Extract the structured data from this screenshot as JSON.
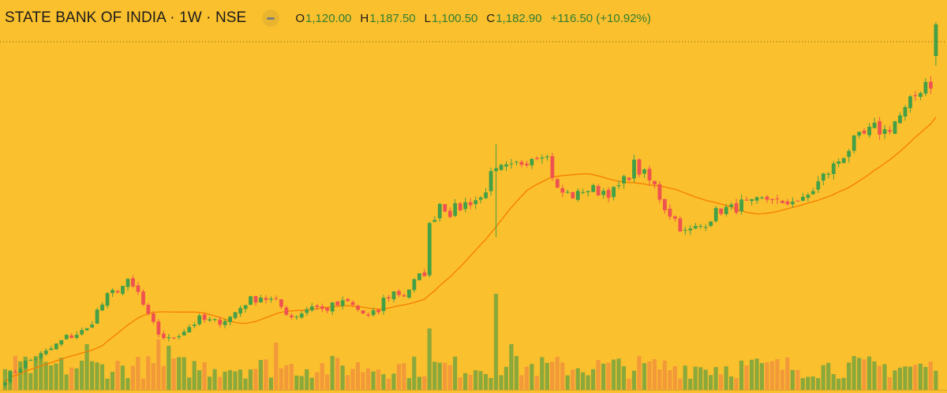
{
  "header": {
    "title": "STATE BANK OF INDIA · 1W · NSE",
    "collapse_icon": "minus-icon",
    "open_label": "O",
    "open_value": "1,120.00",
    "high_label": "H",
    "high_value": "1,187.50",
    "low_label": "L",
    "low_value": "1,100.50",
    "close_label": "C",
    "close_value": "1,182.90",
    "change": "+116.50 (+10.92%)"
  },
  "colors": {
    "background": "#fbc02d",
    "up_candle": "#43a047",
    "down_candle": "#ef5350",
    "moving_average": "#f57c00",
    "volume_up": "#8ba83b",
    "volume_down": "#f2993a"
  },
  "chart_data": {
    "type": "candlestick",
    "interval": "1W",
    "ylim": [
      470,
      1200
    ],
    "price_waypoints": [
      [
        0,
        478
      ],
      [
        4,
        510
      ],
      [
        8,
        530
      ],
      [
        12,
        560
      ],
      [
        16,
        575
      ],
      [
        18,
        612
      ],
      [
        20,
        640
      ],
      [
        22,
        657
      ],
      [
        24,
        668
      ],
      [
        26,
        648
      ],
      [
        28,
        600
      ],
      [
        30,
        568
      ],
      [
        32,
        555
      ],
      [
        35,
        575
      ],
      [
        38,
        596
      ],
      [
        41,
        590
      ],
      [
        44,
        600
      ],
      [
        47,
        630
      ],
      [
        50,
        642
      ],
      [
        53,
        630
      ],
      [
        56,
        602
      ],
      [
        58,
        610
      ],
      [
        60,
        625
      ],
      [
        62,
        615
      ],
      [
        64,
        622
      ],
      [
        67,
        630
      ],
      [
        69,
        615
      ],
      [
        71,
        600
      ],
      [
        73,
        612
      ],
      [
        74,
        635
      ],
      [
        76,
        650
      ],
      [
        78,
        645
      ],
      [
        80,
        670
      ],
      [
        82,
        690
      ],
      [
        83,
        780
      ],
      [
        85,
        828
      ],
      [
        87,
        810
      ],
      [
        89,
        820
      ],
      [
        91,
        832
      ],
      [
        93,
        836
      ],
      [
        95,
        880
      ],
      [
        97,
        893
      ],
      [
        99,
        895
      ],
      [
        101,
        910
      ],
      [
        103,
        922
      ],
      [
        105,
        932
      ],
      [
        106,
        917
      ],
      [
        108,
        852
      ],
      [
        110,
        845
      ],
      [
        112,
        842
      ],
      [
        113,
        856
      ],
      [
        115,
        853
      ],
      [
        117,
        852
      ],
      [
        119,
        849
      ],
      [
        121,
        870
      ],
      [
        123,
        903
      ],
      [
        125,
        882
      ],
      [
        127,
        860
      ],
      [
        129,
        820
      ],
      [
        131,
        795
      ],
      [
        133,
        768
      ],
      [
        134,
        772
      ],
      [
        136,
        782
      ],
      [
        138,
        800
      ],
      [
        140,
        815
      ],
      [
        142,
        815
      ],
      [
        144,
        825
      ],
      [
        146,
        823
      ],
      [
        148,
        832
      ],
      [
        150,
        840
      ],
      [
        152,
        818
      ],
      [
        154,
        837
      ],
      [
        156,
        830
      ],
      [
        158,
        855
      ],
      [
        160,
        880
      ],
      [
        162,
        900
      ],
      [
        164,
        925
      ],
      [
        166,
        948
      ],
      [
        168,
        962
      ],
      [
        170,
        975
      ],
      [
        172,
        970
      ],
      [
        174,
        990
      ],
      [
        176,
        1010
      ],
      [
        178,
        1042
      ],
      [
        180,
        1070
      ],
      [
        181,
        1066
      ],
      [
        182,
        1182.9
      ]
    ],
    "last_candle": {
      "open": 1120.0,
      "high": 1187.5,
      "low": 1100.5,
      "close": 1182.9
    },
    "moving_average_period": 20,
    "volume_relative": "bars along the bottom; notable spikes near weeks 83, 96, 99"
  }
}
